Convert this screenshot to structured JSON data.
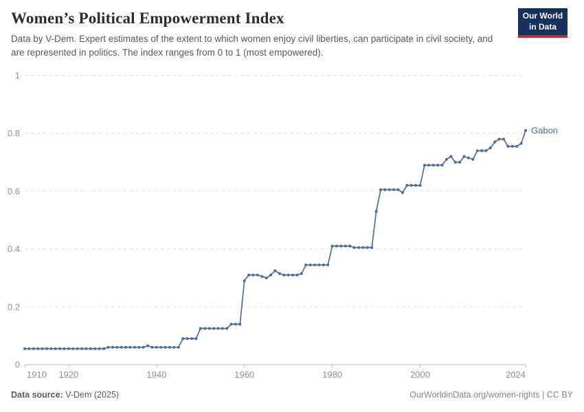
{
  "header": {
    "title": "Women’s Political Empowerment Index",
    "subtitle": "Data by V-Dem. Expert estimates of the extent to which women enjoy civil liberties, can participate in civil society, and are represented in politics. The index ranges from 0 to 1 (most empowered).",
    "logo": {
      "line1": "Our World",
      "line2": "in Data"
    }
  },
  "chart_data": {
    "type": "line",
    "title": "Women’s Political Empowerment Index",
    "entity": "Gabon",
    "xlabel": "",
    "ylabel": "",
    "xlim": [
      1910,
      2024
    ],
    "ylim": [
      0,
      1
    ],
    "x_ticks": [
      1910,
      1920,
      1940,
      1960,
      1980,
      2000,
      2024
    ],
    "y_ticks": [
      0,
      0.2,
      0.4,
      0.6,
      0.8,
      1
    ],
    "grid": "horizontal-dashed",
    "legend": "line-end-label",
    "series": [
      {
        "name": "Gabon",
        "color": "#4C6A9C",
        "years": [
          1910,
          1911,
          1912,
          1913,
          1914,
          1915,
          1916,
          1917,
          1918,
          1919,
          1920,
          1921,
          1922,
          1923,
          1924,
          1925,
          1926,
          1927,
          1928,
          1929,
          1930,
          1931,
          1932,
          1933,
          1934,
          1935,
          1936,
          1937,
          1938,
          1939,
          1940,
          1941,
          1942,
          1943,
          1944,
          1945,
          1946,
          1947,
          1948,
          1949,
          1950,
          1951,
          1952,
          1953,
          1954,
          1955,
          1956,
          1957,
          1958,
          1959,
          1960,
          1961,
          1962,
          1963,
          1964,
          1965,
          1966,
          1967,
          1968,
          1969,
          1970,
          1971,
          1972,
          1973,
          1974,
          1975,
          1976,
          1977,
          1978,
          1979,
          1980,
          1981,
          1982,
          1983,
          1984,
          1985,
          1986,
          1987,
          1988,
          1989,
          1990,
          1991,
          1992,
          1993,
          1994,
          1995,
          1996,
          1997,
          1998,
          1999,
          2000,
          2001,
          2002,
          2003,
          2004,
          2005,
          2006,
          2007,
          2008,
          2009,
          2010,
          2011,
          2012,
          2013,
          2014,
          2015,
          2016,
          2017,
          2018,
          2019,
          2020,
          2021,
          2022,
          2023,
          2024
        ],
        "values": [
          0.055,
          0.055,
          0.055,
          0.055,
          0.055,
          0.055,
          0.055,
          0.055,
          0.055,
          0.055,
          0.055,
          0.055,
          0.055,
          0.055,
          0.055,
          0.055,
          0.055,
          0.055,
          0.055,
          0.06,
          0.06,
          0.06,
          0.06,
          0.06,
          0.06,
          0.06,
          0.06,
          0.06,
          0.065,
          0.06,
          0.06,
          0.06,
          0.06,
          0.06,
          0.06,
          0.06,
          0.09,
          0.09,
          0.09,
          0.09,
          0.125,
          0.125,
          0.125,
          0.125,
          0.125,
          0.125,
          0.125,
          0.14,
          0.14,
          0.14,
          0.29,
          0.31,
          0.31,
          0.31,
          0.305,
          0.3,
          0.31,
          0.325,
          0.315,
          0.31,
          0.31,
          0.31,
          0.31,
          0.315,
          0.345,
          0.345,
          0.345,
          0.345,
          0.345,
          0.345,
          0.41,
          0.41,
          0.41,
          0.41,
          0.41,
          0.405,
          0.405,
          0.405,
          0.405,
          0.405,
          0.53,
          0.605,
          0.605,
          0.605,
          0.605,
          0.605,
          0.595,
          0.62,
          0.62,
          0.62,
          0.62,
          0.69,
          0.69,
          0.69,
          0.69,
          0.69,
          0.71,
          0.72,
          0.7,
          0.7,
          0.72,
          0.715,
          0.71,
          0.74,
          0.74,
          0.74,
          0.75,
          0.77,
          0.78,
          0.78,
          0.755,
          0.755,
          0.755,
          0.765,
          0.81
        ]
      }
    ]
  },
  "footer": {
    "source_label": "Data source:",
    "source_value": "V-Dem (2025)",
    "attribution": "OurWorldinData.org/women-rights | CC BY"
  },
  "colors": {
    "line": "#4C6A9C",
    "grid": "#dcdcdc",
    "axis": "#bbbbbb",
    "tick_text": "#909090",
    "logo_bg": "#16325c",
    "logo_red": "#c5292a"
  }
}
